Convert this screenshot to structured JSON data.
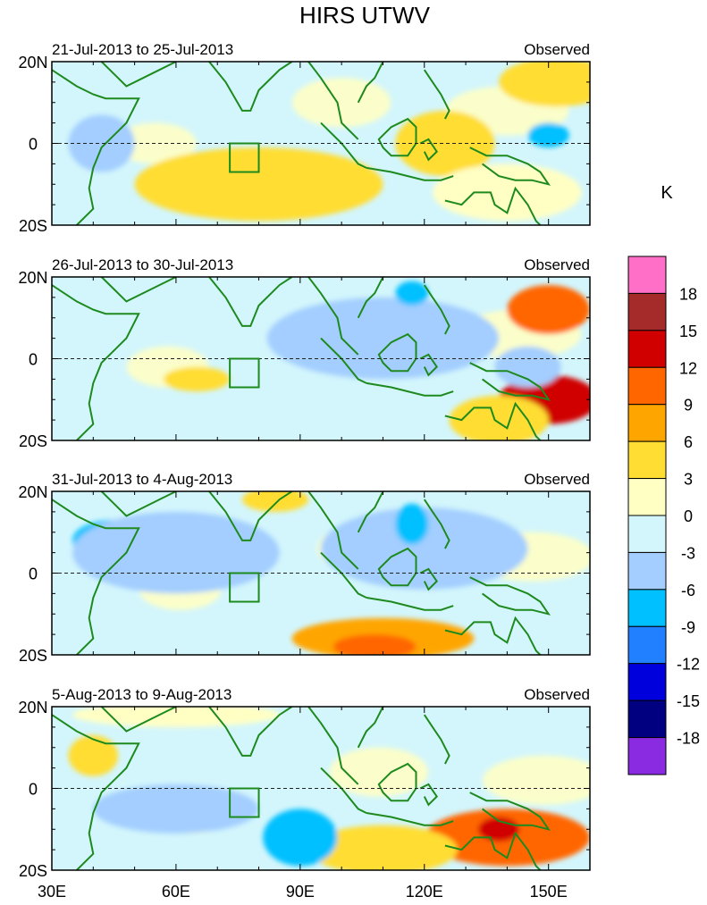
{
  "chart_data": {
    "type": "heatmap",
    "title": "HIRS UTWV",
    "variable_label": "Observed",
    "units": "K",
    "x_axis": {
      "range": [
        30,
        160
      ],
      "ticks": [
        30,
        60,
        90,
        120,
        150
      ],
      "tick_labels": [
        "30E",
        "60E",
        "90E",
        "120E",
        "150E"
      ]
    },
    "y_axis": {
      "range": [
        -20,
        20
      ],
      "ticks": [
        20,
        0,
        -20
      ],
      "tick_labels": [
        "20N",
        "0",
        "20S"
      ]
    },
    "colorbar": {
      "levels": [
        18,
        15,
        12,
        9,
        6,
        3,
        0,
        -3,
        -6,
        -9,
        -12,
        -15,
        -18
      ],
      "level_labels": [
        "18",
        "15",
        "12",
        "9",
        "6",
        "3",
        "0",
        "-3",
        "-6",
        "-9",
        "-12",
        "-15",
        "-18"
      ],
      "colors": [
        "#ff6ec7",
        "#a52a2a",
        "#d00000",
        "#ff6600",
        "#ffa500",
        "#ffdd33",
        "#ffffc4",
        "#d3f6fc",
        "#a3ceff",
        "#00c0ff",
        "#2080ff",
        "#0000dd",
        "#000080",
        "#8a2be2"
      ]
    },
    "panels": [
      {
        "period": "21-Jul-2013 to 25-Jul-2013",
        "label": "Observed",
        "anomalies": [
          {
            "lon": 70,
            "lat": -12,
            "rx": 14,
            "ry": 6,
            "value": 9
          },
          {
            "lon": 80,
            "lat": -10,
            "rx": 30,
            "ry": 9,
            "value": 4
          },
          {
            "lon": 125,
            "lat": 0,
            "rx": 12,
            "ry": 8,
            "value": 4
          },
          {
            "lon": 152,
            "lat": 15,
            "rx": 14,
            "ry": 6,
            "value": 6
          },
          {
            "lon": 140,
            "lat": -12,
            "rx": 18,
            "ry": 7,
            "value": 3
          },
          {
            "lon": 42,
            "lat": 0,
            "rx": 8,
            "ry": 7,
            "value": -4
          },
          {
            "lon": 150,
            "lat": 2,
            "rx": 5,
            "ry": 3,
            "value": -8
          }
        ]
      },
      {
        "period": "26-Jul-2013 to 30-Jul-2013",
        "label": "Observed",
        "anomalies": [
          {
            "lon": 150,
            "lat": 12,
            "rx": 10,
            "ry": 6,
            "value": 12
          },
          {
            "lon": 150,
            "lat": -10,
            "rx": 12,
            "ry": 6,
            "value": 13
          },
          {
            "lon": 138,
            "lat": -15,
            "rx": 12,
            "ry": 6,
            "value": 5
          },
          {
            "lon": 65,
            "lat": -5,
            "rx": 8,
            "ry": 3,
            "value": 4
          },
          {
            "lon": 110,
            "lat": 5,
            "rx": 28,
            "ry": 10,
            "value": -3
          },
          {
            "lon": 117,
            "lat": 16,
            "rx": 4,
            "ry": 3,
            "value": -8
          },
          {
            "lon": 145,
            "lat": -2,
            "rx": 8,
            "ry": 5,
            "value": -5
          }
        ]
      },
      {
        "period": "31-Jul-2013 to 4-Aug-2013",
        "label": "Observed",
        "anomalies": [
          {
            "lon": 110,
            "lat": -16,
            "rx": 22,
            "ry": 5,
            "value": 7
          },
          {
            "lon": 108,
            "lat": -18,
            "rx": 10,
            "ry": 3,
            "value": 10
          },
          {
            "lon": 45,
            "lat": 8,
            "rx": 10,
            "ry": 5,
            "value": -7
          },
          {
            "lon": 60,
            "lat": 5,
            "rx": 25,
            "ry": 10,
            "value": -3
          },
          {
            "lon": 120,
            "lat": 6,
            "rx": 25,
            "ry": 10,
            "value": -3
          },
          {
            "lon": 84,
            "lat": 18,
            "rx": 8,
            "ry": 3,
            "value": 4
          },
          {
            "lon": 117,
            "lat": 12,
            "rx": 4,
            "ry": 5,
            "value": -6
          }
        ]
      },
      {
        "period": "5-Aug-2013 to 9-Aug-2013",
        "label": "Observed",
        "anomalies": [
          {
            "lon": 140,
            "lat": -12,
            "rx": 20,
            "ry": 7,
            "value": 10
          },
          {
            "lon": 138,
            "lat": -10,
            "rx": 5,
            "ry": 3,
            "value": 14
          },
          {
            "lon": 110,
            "lat": -15,
            "rx": 18,
            "ry": 6,
            "value": 4
          },
          {
            "lon": 90,
            "lat": -12,
            "rx": 9,
            "ry": 7,
            "value": -8
          },
          {
            "lon": 60,
            "lat": -5,
            "rx": 20,
            "ry": 6,
            "value": -3
          },
          {
            "lon": 40,
            "lat": 8,
            "rx": 6,
            "ry": 5,
            "value": 4
          },
          {
            "lon": 60,
            "lat": 18,
            "rx": 25,
            "ry": 3,
            "value": 3
          }
        ]
      }
    ]
  }
}
